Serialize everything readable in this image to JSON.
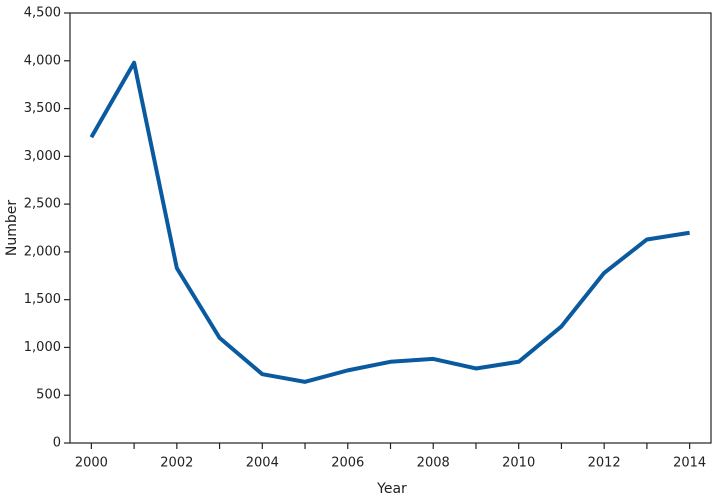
{
  "chart_data": {
    "type": "line",
    "x_label": "Year",
    "y_label": "Number",
    "x": [
      2000,
      2001,
      2002,
      2003,
      2004,
      2005,
      2006,
      2007,
      2008,
      2009,
      2010,
      2011,
      2012,
      2013,
      2014
    ],
    "series": [
      {
        "color": "#0a5aa0",
        "values": [
          3200,
          3980,
          1830,
          1100,
          720,
          640,
          760,
          850,
          880,
          780,
          850,
          1220,
          1780,
          2130,
          2200
        ]
      }
    ],
    "xlim": [
      1999.5,
      2014.5
    ],
    "xticks": [
      2000,
      2002,
      2004,
      2006,
      2008,
      2010,
      2012,
      2014
    ],
    "xminorticks": [
      2001,
      2003,
      2005,
      2007,
      2009,
      2011,
      2013
    ],
    "ylim": [
      0,
      4500
    ],
    "yticks": [
      0,
      500,
      {
        "value": 1000,
        "label": "1,000"
      },
      {
        "value": 1500,
        "label": "1,500"
      },
      {
        "value": 2000,
        "label": "2,000"
      },
      {
        "value": 2500,
        "label": "2,500"
      },
      {
        "value": 3000,
        "label": "3,000"
      },
      {
        "value": 3500,
        "label": "3,500"
      },
      {
        "value": 4000,
        "label": "4,000"
      },
      {
        "value": 4500,
        "label": "4,500"
      }
    ],
    "grid": false
  }
}
